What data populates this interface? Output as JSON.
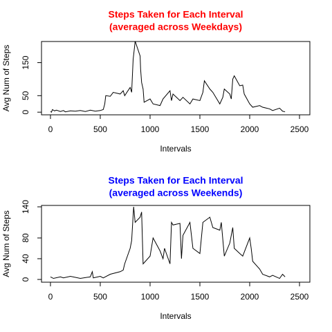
{
  "chart_data": [
    {
      "type": "line",
      "title": "Steps Taken for Each Interval",
      "subtitle": "(averaged across Weekdays)",
      "title_color": "#ff0000",
      "x_label": "Intervals",
      "y_label": "Avg Num of Steps",
      "color": "#000000",
      "x": [
        0,
        10,
        20,
        40,
        60,
        100,
        130,
        150,
        200,
        250,
        300,
        350,
        400,
        450,
        500,
        530,
        545,
        555,
        600,
        630,
        700,
        730,
        745,
        800,
        815,
        830,
        845,
        850,
        900,
        905,
        915,
        930,
        940,
        1000,
        1030,
        1100,
        1130,
        1200,
        1215,
        1230,
        1300,
        1330,
        1400,
        1430,
        1500,
        1530,
        1545,
        1600,
        1630,
        1700,
        1730,
        1745,
        1800,
        1815,
        1830,
        1845,
        1900,
        1930,
        1945,
        2000,
        2030,
        2100,
        2130,
        2200,
        2230,
        2300,
        2330,
        2355
      ],
      "values": [
        2,
        0,
        8,
        4,
        6,
        2,
        5,
        1,
        4,
        3,
        5,
        2,
        6,
        3,
        5,
        8,
        25,
        50,
        48,
        60,
        55,
        65,
        50,
        75,
        60,
        160,
        200,
        215,
        170,
        130,
        90,
        70,
        30,
        40,
        25,
        20,
        40,
        65,
        35,
        55,
        35,
        45,
        25,
        40,
        35,
        60,
        95,
        70,
        60,
        25,
        45,
        70,
        55,
        40,
        100,
        110,
        80,
        82,
        55,
        25,
        15,
        20,
        15,
        10,
        5,
        12,
        3,
        1
      ],
      "xlim": [
        -90,
        2604
      ],
      "ylim": [
        -8,
        214
      ],
      "xticks": [
        0,
        500,
        1000,
        1500,
        2000,
        2500
      ],
      "yticks": [
        0,
        50,
        150
      ]
    },
    {
      "type": "line",
      "title": "Steps Taken for Each Interval",
      "subtitle": "(averaged across Weekends)",
      "title_color": "#0000ff",
      "x_label": "Intervals",
      "y_label": "Avg Num of Steps",
      "color": "#000000",
      "x": [
        0,
        30,
        100,
        130,
        200,
        300,
        400,
        420,
        430,
        500,
        530,
        600,
        700,
        730,
        745,
        800,
        815,
        835,
        850,
        900,
        915,
        930,
        1000,
        1030,
        1100,
        1130,
        1145,
        1200,
        1215,
        1230,
        1300,
        1315,
        1330,
        1400,
        1430,
        1500,
        1530,
        1600,
        1630,
        1700,
        1715,
        1745,
        1800,
        1830,
        1845,
        1900,
        1930,
        2000,
        2015,
        2030,
        2100,
        2130,
        2200,
        2230,
        2300,
        2330,
        2355
      ],
      "values": [
        5,
        2,
        5,
        3,
        6,
        2,
        5,
        15,
        3,
        6,
        3,
        10,
        15,
        18,
        30,
        60,
        75,
        140,
        110,
        120,
        130,
        30,
        45,
        80,
        55,
        40,
        60,
        30,
        110,
        105,
        108,
        40,
        85,
        110,
        60,
        50,
        110,
        120,
        100,
        95,
        110,
        45,
        70,
        100,
        60,
        50,
        45,
        80,
        60,
        35,
        20,
        10,
        5,
        8,
        2,
        10,
        5
      ],
      "xlim": [
        -90,
        2604
      ],
      "ylim": [
        -5.3,
        142.7
      ],
      "xticks": [
        0,
        500,
        1000,
        1500,
        2000,
        2500
      ],
      "yticks": [
        0,
        40,
        80,
        140
      ]
    }
  ]
}
